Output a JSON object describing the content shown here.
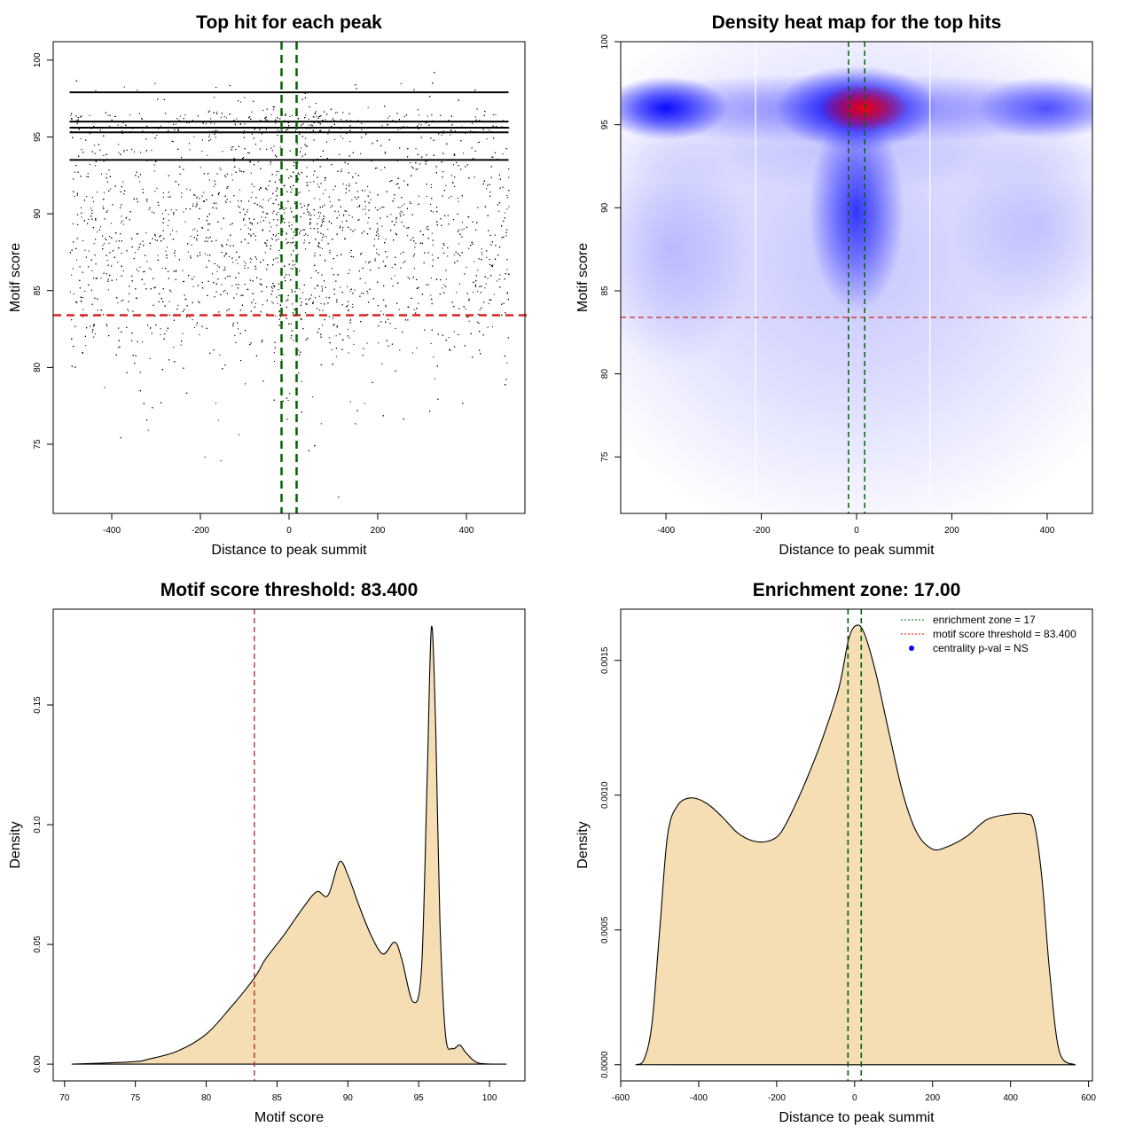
{
  "chart_data": [
    {
      "type": "scatter",
      "title": "Top hit for each peak",
      "xlabel": "Distance to peak summit",
      "ylabel": "Motif score",
      "xlim": [
        -532,
        532
      ],
      "ylim": [
        70.5,
        101.2
      ],
      "xticks": [
        -400,
        -200,
        0,
        200,
        400
      ],
      "yticks": [
        75,
        80,
        85,
        90,
        95,
        100
      ],
      "x_range_points": [
        -495,
        495
      ],
      "n_points_drawn": 5000,
      "dense_score_lines": [
        97.9,
        96.0,
        95.6,
        95.3,
        93.5
      ],
      "threshold": 83.4,
      "enrichment_zone": [
        -17,
        17
      ],
      "threshold_color": "#dd2222",
      "zone_color": "#006400"
    },
    {
      "type": "heatmap",
      "title": "Density heat map for the top hits",
      "xlabel": "Distance to peak summit",
      "ylabel": "Motif score",
      "xlim": [
        -495,
        495
      ],
      "ylim": [
        71.6,
        100
      ],
      "xticks": [
        -400,
        -200,
        0,
        200,
        400
      ],
      "yticks": [
        75,
        80,
        85,
        90,
        95,
        100
      ],
      "threshold": 83.4,
      "enrichment_zone": [
        -17,
        17
      ],
      "white_gaps_x": [
        -212,
        154
      ],
      "density_blobs": [
        {
          "x": 0,
          "y": 87,
          "sx": 650,
          "sy": 11,
          "color": "#3333ff",
          "intensity": 0.28
        },
        {
          "x": 0,
          "y": 93.5,
          "sx": 650,
          "sy": 1.5,
          "color": "#3333ff",
          "intensity": 0.12
        },
        {
          "x": -390,
          "y": 87.5,
          "sx": 170,
          "sy": 4.5,
          "color": "#3333ff",
          "intensity": 0.25
        },
        {
          "x": 380,
          "y": 89,
          "sx": 180,
          "sy": 3.5,
          "color": "#3333ff",
          "intensity": 0.2
        },
        {
          "x": 0,
          "y": 96,
          "sx": 650,
          "sy": 1.3,
          "color": "#2222ff",
          "intensity": 0.5
        },
        {
          "x": -400,
          "y": 96,
          "sx": 130,
          "sy": 1.2,
          "color": "#0000ff",
          "intensity": 0.95
        },
        {
          "x": 400,
          "y": 96,
          "sx": 150,
          "sy": 1.2,
          "color": "#0000ff",
          "intensity": 0.6
        },
        {
          "x": 0,
          "y": 89.8,
          "sx": 100,
          "sy": 3.8,
          "color": "#0000ff",
          "intensity": 0.75
        },
        {
          "x": 0,
          "y": 96,
          "sx": 170,
          "sy": 1.6,
          "color": "#0000ff",
          "intensity": 1.0
        },
        {
          "x": 15,
          "y": 96,
          "sx": 95,
          "sy": 0.9,
          "color": "#ff0000",
          "intensity": 0.95
        }
      ]
    },
    {
      "type": "area",
      "title": "Motif score threshold: 83.400",
      "xlabel": "Motif score",
      "ylabel": "Density",
      "xlim": [
        69.2,
        102.5
      ],
      "ylim": [
        -0.007,
        0.19
      ],
      "xticks": [
        70,
        75,
        80,
        85,
        90,
        95,
        100
      ],
      "yticks": [
        0.0,
        0.05,
        0.1,
        0.15
      ],
      "ytick_labels": [
        "0.00",
        "0.05",
        "0.10",
        "0.15"
      ],
      "threshold": 83.4,
      "x": [
        70.5,
        74.8,
        76,
        78,
        80,
        81.7,
        83.4,
        84.2,
        85.5,
        86.8,
        87.8,
        88.6,
        89.4,
        90,
        90.8,
        91.7,
        92.5,
        93.3,
        93.8,
        94.6,
        95.2,
        95.6,
        95.9,
        96.2,
        96.5,
        96.9,
        97.4,
        97.9,
        98.3,
        99,
        99.8,
        101.2
      ],
      "y": [
        0,
        0.001,
        0.0022,
        0.0055,
        0.0125,
        0.0235,
        0.036,
        0.044,
        0.054,
        0.065,
        0.072,
        0.0705,
        0.0844,
        0.079,
        0.066,
        0.053,
        0.046,
        0.051,
        0.044,
        0.026,
        0.04,
        0.12,
        0.1826,
        0.14,
        0.06,
        0.012,
        0.0065,
        0.008,
        0.005,
        0.001,
        0.0001,
        0
      ]
    },
    {
      "type": "area",
      "title": "Enrichment zone: 17.00",
      "xlabel": "Distance to peak summit",
      "ylabel": "Density",
      "xlim": [
        -600,
        610
      ],
      "ylim": [
        -6e-05,
        0.00169
      ],
      "xticks": [
        -600,
        -400,
        -200,
        0,
        200,
        400,
        600
      ],
      "yticks": [
        0.0,
        0.0005,
        0.001,
        0.0015
      ],
      "ytick_labels": [
        "0.0000",
        "0.0005",
        "0.0010",
        "0.0015"
      ],
      "enrichment_zone": [
        -17,
        17
      ],
      "x": [
        -560,
        -540,
        -520,
        -500,
        -480,
        -455,
        -420,
        -380,
        -340,
        -300,
        -260,
        -220,
        -190,
        -160,
        -120,
        -80,
        -40,
        -15,
        5,
        25,
        55,
        90,
        125,
        160,
        200,
        240,
        290,
        340,
        400,
        440,
        460,
        480,
        500,
        525,
        565
      ],
      "y": [
        0,
        2e-05,
        0.00015,
        0.0005,
        0.00085,
        0.00096,
        0.00099,
        0.00097,
        0.00092,
        0.00086,
        0.00083,
        0.00083,
        0.00086,
        0.00094,
        0.00107,
        0.00122,
        0.0014,
        0.00158,
        0.00163,
        0.0016,
        0.00145,
        0.00122,
        0.001,
        0.00086,
        0.0008,
        0.00081,
        0.00085,
        0.00091,
        0.00093,
        0.00093,
        0.0009,
        0.0007,
        0.00035,
        5e-05,
        0
      ],
      "fill_color": "#f5deb3",
      "legend": {
        "position": "top-right",
        "entries": [
          {
            "label": "enrichment zone = 17",
            "style": "dotted-line",
            "color": "#006400"
          },
          {
            "label": "motif score threshold = 83.400",
            "style": "dotted-line",
            "color": "#ff0000"
          },
          {
            "label": "centrality p-val = NS",
            "style": "dot",
            "color": "#0000ff"
          }
        ]
      }
    }
  ]
}
